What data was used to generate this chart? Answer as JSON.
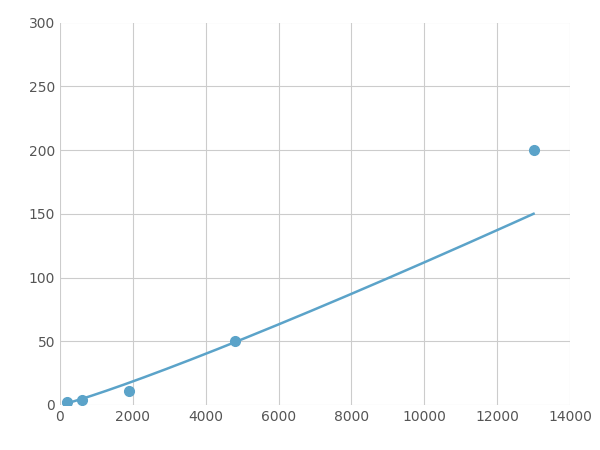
{
  "x_data": [
    200,
    600,
    1900,
    4800,
    13000
  ],
  "y_data": [
    2,
    4,
    11,
    50,
    200
  ],
  "line_color": "#5ba3c9",
  "marker_color": "#5ba3c9",
  "marker_size": 7,
  "line_width": 1.8,
  "xlim": [
    0,
    14000
  ],
  "ylim": [
    0,
    300
  ],
  "xticks": [
    0,
    2000,
    4000,
    6000,
    8000,
    10000,
    12000,
    14000
  ],
  "yticks": [
    0,
    50,
    100,
    150,
    200,
    250,
    300
  ],
  "grid_color": "#cccccc",
  "grid_linewidth": 0.8,
  "background_color": "#ffffff",
  "figsize": [
    6.0,
    4.5
  ],
  "dpi": 100
}
